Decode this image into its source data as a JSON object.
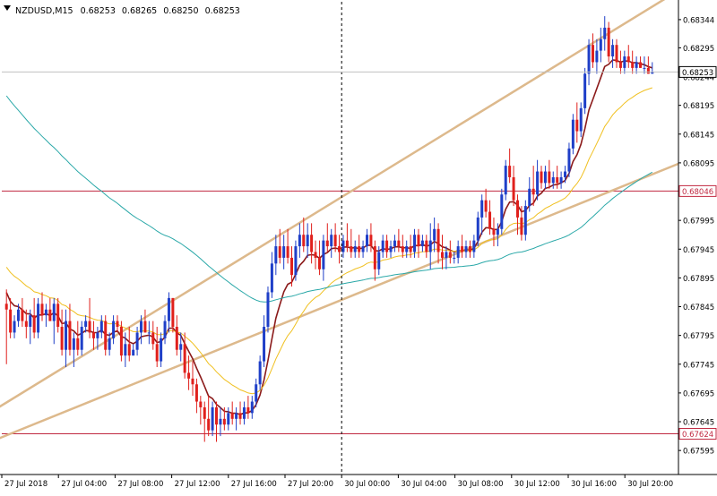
{
  "chart_data": {
    "type": "candlestick",
    "symbol_line": {
      "symbol": "NZDUSD,M15",
      "open": "0.68253",
      "high": "0.68265",
      "low": "0.68250",
      "close": "0.68253"
    },
    "x_tick_labels": [
      "27 Jul 2018",
      "27 Jul 04:00",
      "27 Jul 08:00",
      "27 Jul 12:00",
      "27 Jul 16:00",
      "27 Jul 20:00",
      "30 Jul 00:00",
      "30 Jul 04:00",
      "30 Jul 08:00",
      "30 Jul 12:00",
      "30 Jul 16:00",
      "30 Jul 20:00"
    ],
    "y_tick_labels": [
      "0.68344",
      "0.68295",
      "0.68244",
      "0.68195",
      "0.68145",
      "0.68095",
      "0.68046",
      "0.67995",
      "0.67945",
      "0.67895",
      "0.67845",
      "0.67795",
      "0.67745",
      "0.67695",
      "0.67645",
      "0.67595"
    ],
    "ylim": [
      0.67575,
      0.68375
    ],
    "grid": false,
    "colors": {
      "bull_candle": "#1f3fc8",
      "bear_candle": "#e0201c",
      "ma_fast": "#8b1a1a",
      "ma_mid": "#f0c020",
      "ma_slow": "#2aa8a8",
      "channel": "#ddb98c",
      "hline": "#c02840",
      "current_price_line": "#c0c0c0",
      "vline": "#000000"
    },
    "current_price": {
      "value": 0.68253,
      "label": "0.68253"
    },
    "horizontal_lines": [
      {
        "value": 0.68046,
        "label": "0.68046"
      },
      {
        "value": 0.67624,
        "label": "0.67624"
      }
    ],
    "vertical_dashed_line_at": "30 Jul 00:00",
    "channel_lines": [
      {
        "from": [
          -0.02,
          0.676085
        ],
        "to": [
          1.0,
          0.680935
        ]
      },
      {
        "from": [
          -0.09,
          0.676085
        ],
        "to": [
          1.0,
          0.683945
        ]
      }
    ],
    "candles": [
      [
        0.6785,
        0.67875,
        0.67745,
        0.6784
      ],
      [
        0.6784,
        0.6786,
        0.6779,
        0.678
      ],
      [
        0.678,
        0.6783,
        0.6779,
        0.6782
      ],
      [
        0.6782,
        0.6785,
        0.6781,
        0.6784
      ],
      [
        0.6784,
        0.6786,
        0.6781,
        0.6782
      ],
      [
        0.6782,
        0.6784,
        0.6779,
        0.6781
      ],
      [
        0.6781,
        0.6784,
        0.6778,
        0.6783
      ],
      [
        0.6783,
        0.6786,
        0.6779,
        0.678
      ],
      [
        0.678,
        0.6786,
        0.6779,
        0.6785
      ],
      [
        0.6785,
        0.6787,
        0.6782,
        0.6783
      ],
      [
        0.6783,
        0.6785,
        0.6781,
        0.6784
      ],
      [
        0.6784,
        0.6786,
        0.6782,
        0.6782
      ],
      [
        0.6782,
        0.6786,
        0.6778,
        0.6785
      ],
      [
        0.6785,
        0.6786,
        0.678,
        0.6781
      ],
      [
        0.6781,
        0.6784,
        0.6776,
        0.6777
      ],
      [
        0.6777,
        0.6784,
        0.6774,
        0.6782
      ],
      [
        0.6782,
        0.6785,
        0.6776,
        0.6777
      ],
      [
        0.6777,
        0.678,
        0.6774,
        0.6779
      ],
      [
        0.6779,
        0.6782,
        0.6776,
        0.6777
      ],
      [
        0.6777,
        0.6782,
        0.6776,
        0.6781
      ],
      [
        0.6781,
        0.6783,
        0.678,
        0.6782
      ],
      [
        0.6782,
        0.6786,
        0.6779,
        0.678
      ],
      [
        0.678,
        0.6782,
        0.6777,
        0.6779
      ],
      [
        0.6779,
        0.6781,
        0.6777,
        0.678
      ],
      [
        0.678,
        0.6783,
        0.6779,
        0.6782
      ],
      [
        0.6782,
        0.6783,
        0.6776,
        0.6777
      ],
      [
        0.6777,
        0.678,
        0.6776,
        0.6779
      ],
      [
        0.6779,
        0.6783,
        0.6778,
        0.6782
      ],
      [
        0.6782,
        0.6783,
        0.678,
        0.6781
      ],
      [
        0.6781,
        0.6782,
        0.6775,
        0.6776
      ],
      [
        0.6776,
        0.678,
        0.6774,
        0.6778
      ],
      [
        0.6778,
        0.6781,
        0.6775,
        0.6776
      ],
      [
        0.6776,
        0.6778,
        0.6776,
        0.6777
      ],
      [
        0.6777,
        0.6781,
        0.6776,
        0.678
      ],
      [
        0.678,
        0.6783,
        0.6778,
        0.6782
      ],
      [
        0.6782,
        0.6784,
        0.678,
        0.678
      ],
      [
        0.678,
        0.6782,
        0.6778,
        0.678
      ],
      [
        0.678,
        0.6782,
        0.6777,
        0.6778
      ],
      [
        0.6778,
        0.6781,
        0.6774,
        0.6775
      ],
      [
        0.6775,
        0.678,
        0.6774,
        0.6779
      ],
      [
        0.6779,
        0.6783,
        0.6778,
        0.6782
      ],
      [
        0.6782,
        0.6787,
        0.678,
        0.6786
      ],
      [
        0.6786,
        0.6786,
        0.678,
        0.6781
      ],
      [
        0.6781,
        0.6783,
        0.6776,
        0.6777
      ],
      [
        0.6777,
        0.678,
        0.6775,
        0.6778
      ],
      [
        0.6778,
        0.678,
        0.6772,
        0.6773
      ],
      [
        0.6773,
        0.6776,
        0.677,
        0.6772
      ],
      [
        0.6772,
        0.6775,
        0.6769,
        0.6771
      ],
      [
        0.6771,
        0.6772,
        0.6766,
        0.6768
      ],
      [
        0.6768,
        0.6769,
        0.6764,
        0.6767
      ],
      [
        0.6767,
        0.6768,
        0.6761,
        0.6765
      ],
      [
        0.6765,
        0.6769,
        0.6762,
        0.6763
      ],
      [
        0.6763,
        0.6768,
        0.6762,
        0.6767
      ],
      [
        0.6767,
        0.6768,
        0.6761,
        0.6764
      ],
      [
        0.6764,
        0.6767,
        0.6762,
        0.6765
      ],
      [
        0.6765,
        0.6767,
        0.6763,
        0.6764
      ],
      [
        0.6764,
        0.6767,
        0.6763,
        0.6766
      ],
      [
        0.6766,
        0.6768,
        0.6764,
        0.6765
      ],
      [
        0.6765,
        0.6767,
        0.6763,
        0.6766
      ],
      [
        0.6766,
        0.6768,
        0.6764,
        0.6765
      ],
      [
        0.6765,
        0.6768,
        0.6764,
        0.6767
      ],
      [
        0.6767,
        0.6769,
        0.6765,
        0.6766
      ],
      [
        0.6766,
        0.6769,
        0.6765,
        0.6768
      ],
      [
        0.6768,
        0.6772,
        0.6767,
        0.6771
      ],
      [
        0.6771,
        0.6776,
        0.677,
        0.6775
      ],
      [
        0.6775,
        0.6783,
        0.6774,
        0.6781
      ],
      [
        0.6781,
        0.6788,
        0.678,
        0.6787
      ],
      [
        0.6787,
        0.6794,
        0.6786,
        0.6792
      ],
      [
        0.6792,
        0.6797,
        0.679,
        0.6795
      ],
      [
        0.6795,
        0.6798,
        0.6792,
        0.6793
      ],
      [
        0.6793,
        0.6797,
        0.6791,
        0.6795
      ],
      [
        0.6795,
        0.6798,
        0.6792,
        0.6793
      ],
      [
        0.6793,
        0.6795,
        0.6788,
        0.679
      ],
      [
        0.679,
        0.6796,
        0.6789,
        0.6795
      ],
      [
        0.6795,
        0.6799,
        0.6793,
        0.6797
      ],
      [
        0.6797,
        0.68,
        0.6794,
        0.6795
      ],
      [
        0.6795,
        0.6799,
        0.6793,
        0.6797
      ],
      [
        0.6797,
        0.6799,
        0.6792,
        0.6794
      ],
      [
        0.6794,
        0.6796,
        0.6791,
        0.6793
      ],
      [
        0.6793,
        0.6796,
        0.679,
        0.6791
      ],
      [
        0.6791,
        0.6797,
        0.6789,
        0.6796
      ],
      [
        0.6796,
        0.6799,
        0.6794,
        0.6795
      ],
      [
        0.6795,
        0.6798,
        0.6793,
        0.6797
      ],
      [
        0.6797,
        0.6799,
        0.6794,
        0.6795
      ],
      [
        0.6795,
        0.6797,
        0.6792,
        0.6794
      ],
      [
        0.6794,
        0.6797,
        0.6793,
        0.6796
      ],
      [
        0.6796,
        0.6799,
        0.6794,
        0.6795
      ],
      [
        0.6795,
        0.6798,
        0.6793,
        0.6794
      ],
      [
        0.6794,
        0.6796,
        0.6793,
        0.6795
      ],
      [
        0.6795,
        0.6797,
        0.6793,
        0.6794
      ],
      [
        0.6794,
        0.6796,
        0.6793,
        0.6795
      ],
      [
        0.6795,
        0.6798,
        0.6794,
        0.6797
      ],
      [
        0.6797,
        0.6799,
        0.6794,
        0.6795
      ],
      [
        0.6795,
        0.6796,
        0.6789,
        0.6791
      ],
      [
        0.6791,
        0.6795,
        0.679,
        0.6794
      ],
      [
        0.6794,
        0.6797,
        0.6793,
        0.6796
      ],
      [
        0.6796,
        0.6797,
        0.6793,
        0.6794
      ],
      [
        0.6794,
        0.6796,
        0.6793,
        0.6795
      ],
      [
        0.6795,
        0.6797,
        0.6794,
        0.6796
      ],
      [
        0.6796,
        0.6798,
        0.6794,
        0.6795
      ],
      [
        0.6795,
        0.6797,
        0.6793,
        0.6794
      ],
      [
        0.6794,
        0.6796,
        0.6793,
        0.6795
      ],
      [
        0.6795,
        0.6797,
        0.6793,
        0.6794
      ],
      [
        0.6794,
        0.6798,
        0.6793,
        0.6797
      ],
      [
        0.6797,
        0.6798,
        0.6793,
        0.6795
      ],
      [
        0.6795,
        0.6797,
        0.6794,
        0.6796
      ],
      [
        0.6796,
        0.6797,
        0.6793,
        0.6794
      ],
      [
        0.6794,
        0.6799,
        0.6791,
        0.6796
      ],
      [
        0.6796,
        0.68,
        0.6794,
        0.6798
      ],
      [
        0.6798,
        0.6799,
        0.6792,
        0.6794
      ],
      [
        0.6794,
        0.6797,
        0.6791,
        0.6793
      ],
      [
        0.6793,
        0.6795,
        0.6791,
        0.6794
      ],
      [
        0.6794,
        0.6796,
        0.6792,
        0.6793
      ],
      [
        0.6793,
        0.6794,
        0.6792,
        0.6793
      ],
      [
        0.6793,
        0.6796,
        0.6792,
        0.6795
      ],
      [
        0.6795,
        0.6797,
        0.6793,
        0.6794
      ],
      [
        0.6794,
        0.6796,
        0.6793,
        0.6795
      ],
      [
        0.6795,
        0.6796,
        0.6793,
        0.6794
      ],
      [
        0.6794,
        0.6797,
        0.6793,
        0.6796
      ],
      [
        0.6796,
        0.6801,
        0.6795,
        0.68
      ],
      [
        0.68,
        0.6804,
        0.6797,
        0.6803
      ],
      [
        0.6803,
        0.6805,
        0.68,
        0.6801
      ],
      [
        0.6801,
        0.6803,
        0.6797,
        0.6798
      ],
      [
        0.6798,
        0.68,
        0.6795,
        0.6797
      ],
      [
        0.6797,
        0.6799,
        0.6795,
        0.6798
      ],
      [
        0.6798,
        0.6805,
        0.6797,
        0.6804
      ],
      [
        0.6804,
        0.681,
        0.6803,
        0.6809
      ],
      [
        0.6809,
        0.6812,
        0.6806,
        0.6807
      ],
      [
        0.6807,
        0.6809,
        0.6802,
        0.6803
      ],
      [
        0.6803,
        0.6804,
        0.6797,
        0.68
      ],
      [
        0.68,
        0.6802,
        0.6796,
        0.6797
      ],
      [
        0.6797,
        0.6803,
        0.6796,
        0.6802
      ],
      [
        0.6802,
        0.6807,
        0.6801,
        0.6805
      ],
      [
        0.6805,
        0.6809,
        0.6802,
        0.6804
      ],
      [
        0.6804,
        0.681,
        0.6803,
        0.6808
      ],
      [
        0.6808,
        0.6809,
        0.6805,
        0.6806
      ],
      [
        0.6806,
        0.6809,
        0.6805,
        0.6808
      ],
      [
        0.6808,
        0.681,
        0.6805,
        0.6806
      ],
      [
        0.6806,
        0.6808,
        0.6805,
        0.6807
      ],
      [
        0.6807,
        0.6809,
        0.6805,
        0.6806
      ],
      [
        0.6806,
        0.6808,
        0.6805,
        0.6807
      ],
      [
        0.6807,
        0.6809,
        0.6806,
        0.6808
      ],
      [
        0.6808,
        0.6813,
        0.6807,
        0.6812
      ],
      [
        0.6812,
        0.6818,
        0.6811,
        0.6817
      ],
      [
        0.6817,
        0.682,
        0.6813,
        0.6815
      ],
      [
        0.6815,
        0.682,
        0.6814,
        0.6819
      ],
      [
        0.6819,
        0.6826,
        0.6818,
        0.6825
      ],
      [
        0.6825,
        0.6831,
        0.6823,
        0.683
      ],
      [
        0.683,
        0.6832,
        0.6826,
        0.6827
      ],
      [
        0.6827,
        0.6831,
        0.6825,
        0.6829
      ],
      [
        0.6829,
        0.6833,
        0.6827,
        0.6831
      ],
      [
        0.6831,
        0.6835,
        0.6829,
        0.6833
      ],
      [
        0.6833,
        0.6834,
        0.6827,
        0.6828
      ],
      [
        0.6828,
        0.6831,
        0.6826,
        0.683
      ],
      [
        0.683,
        0.6831,
        0.6826,
        0.6827
      ],
      [
        0.6827,
        0.6829,
        0.6825,
        0.6826
      ],
      [
        0.6826,
        0.6829,
        0.6825,
        0.6828
      ],
      [
        0.6828,
        0.683,
        0.6826,
        0.6827
      ],
      [
        0.6827,
        0.6829,
        0.6825,
        0.6826
      ],
      [
        0.6826,
        0.6828,
        0.6825,
        0.6827
      ],
      [
        0.6827,
        0.6828,
        0.6826,
        0.6826
      ],
      [
        0.6826,
        0.6828,
        0.6825,
        0.6826
      ],
      [
        0.6826,
        0.6828,
        0.6825,
        0.6825
      ],
      [
        0.6825,
        0.6827,
        0.6825,
        0.68253
      ]
    ]
  }
}
